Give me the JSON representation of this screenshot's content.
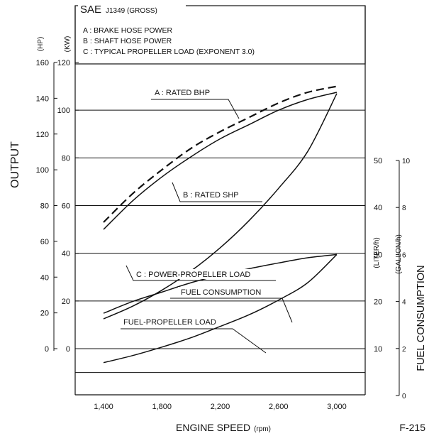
{
  "figure_label": "F-215",
  "colors": {
    "ink": "#111111",
    "background": "#ffffff"
  },
  "chart_data": {
    "type": "line",
    "title": "SAE J1349 (GROSS)",
    "title_main": "SAE",
    "title_sub": "J1349 (GROSS)",
    "legend": [
      "A : BRAKE HOSE POWER",
      "B : SHAFT HOSE POWER",
      "C : TYPICAL PROPELLER LOAD (EXPONENT 3.0)"
    ],
    "legend_position": "top-inside",
    "grid": "horizontal",
    "xlabel": "ENGINE SPEED",
    "xlabel_unit": "(rpm)",
    "x_ticks": [
      1400,
      1800,
      2200,
      2600,
      3000
    ],
    "x_tick_labels": [
      "1,400",
      "1,800",
      "2,200",
      "2,600",
      "3,000"
    ],
    "xlim": [
      1400,
      3000
    ],
    "ylabel_left": "OUTPUT",
    "ylabel_right": "FUEL CONSUMPTION",
    "axes": {
      "hp": {
        "unit_label": "(HP)",
        "range": [
          0,
          160
        ],
        "ticks": [
          0,
          20,
          40,
          60,
          80,
          100,
          120,
          140,
          160
        ]
      },
      "kw": {
        "unit_label": "(KW)",
        "range": [
          0,
          120
        ],
        "ticks": [
          0,
          20,
          40,
          60,
          80,
          100,
          120
        ]
      },
      "liter_h": {
        "unit_label": "(LITER/h)",
        "range": [
          0,
          50
        ],
        "ticks": [
          10,
          20,
          30,
          40,
          50
        ]
      },
      "gallon_h": {
        "unit_label": "(GALLON/h)",
        "range": [
          0,
          10
        ],
        "ticks": [
          0,
          2,
          4,
          6,
          8,
          10
        ]
      }
    },
    "series": [
      {
        "label": "A : RATED BHP",
        "axis": "kw",
        "style": "dashed",
        "x": [
          1400,
          1600,
          1800,
          2000,
          2200,
          2400,
          2600,
          2800,
          3000
        ],
        "y": [
          53,
          65,
          75,
          84,
          91,
          97,
          103,
          107.5,
          110
        ]
      },
      {
        "label": "B : RATED SHP",
        "axis": "kw",
        "style": "solid",
        "x": [
          1400,
          1600,
          1800,
          2000,
          2200,
          2400,
          2600,
          2800,
          3000
        ],
        "y": [
          50,
          62,
          72,
          80.5,
          88,
          94,
          100,
          104.5,
          107.5
        ]
      },
      {
        "label": "C : POWER-PROPELLER LOAD",
        "axis": "kw",
        "style": "solid",
        "x": [
          1400,
          1600,
          1800,
          2000,
          2200,
          2400,
          2600,
          2800,
          3000
        ],
        "y": [
          12.5,
          17.8,
          24.5,
          32.6,
          42.3,
          53.8,
          67.2,
          82.7,
          107
        ]
      },
      {
        "label": "FUEL CONSUMPTION",
        "axis": "liter_h",
        "style": "solid",
        "x": [
          1400,
          1600,
          1800,
          2000,
          2200,
          2400,
          2600,
          2800,
          3000
        ],
        "y": [
          17.5,
          20,
          22,
          24,
          25.6,
          27,
          28.2,
          29.3,
          30
        ]
      },
      {
        "label": "FUEL-PROPELLER LOAD",
        "axis": "liter_h",
        "style": "solid",
        "x": [
          1400,
          1600,
          1800,
          2000,
          2200,
          2400,
          2600,
          2800,
          3000
        ],
        "y": [
          7,
          8.5,
          10.3,
          12.3,
          14.7,
          17.2,
          20.3,
          24,
          30
        ]
      }
    ]
  }
}
